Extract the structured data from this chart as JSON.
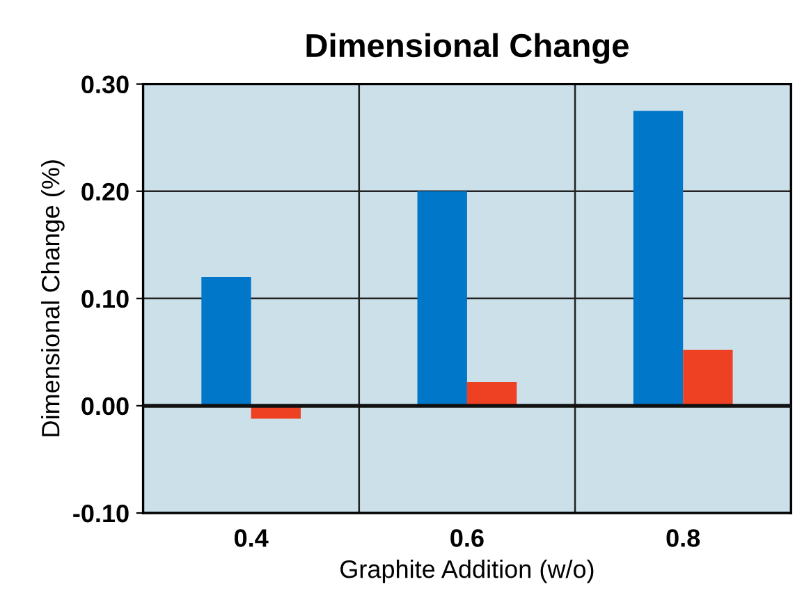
{
  "chart_data": {
    "type": "bar",
    "title": "Dimensional Change",
    "xlabel": "Graphite Addition (w/o)",
    "ylabel": "Dimensional Change (%)",
    "categories": [
      "0.4",
      "0.6",
      "0.8"
    ],
    "series": [
      {
        "color": "#0077c8",
        "values": [
          0.12,
          0.2,
          0.275
        ]
      },
      {
        "color": "#ee4023",
        "values": [
          -0.012,
          0.022,
          0.052
        ]
      }
    ],
    "ylim": [
      -0.1,
      0.3
    ],
    "yticks": [
      {
        "value": -0.1,
        "label": "-0.10"
      },
      {
        "value": 0.0,
        "label": "0.00"
      },
      {
        "value": 0.1,
        "label": "0.10"
      },
      {
        "value": 0.2,
        "label": "0.20"
      },
      {
        "value": 0.3,
        "label": "0.30"
      }
    ],
    "grid": true
  }
}
